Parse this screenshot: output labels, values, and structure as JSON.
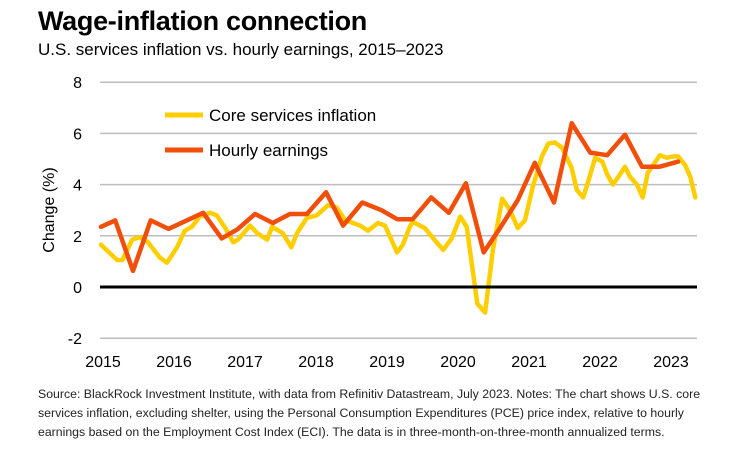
{
  "chart_data": {
    "type": "line",
    "title": "Wage-inflation connection",
    "subtitle": "U.S. services inflation vs. hourly earnings, 2015–2023",
    "xlabel": "",
    "ylabel": "Change (%)",
    "xlim": [
      2015,
      2023.5
    ],
    "ylim": [
      -2,
      8
    ],
    "yticks": [
      8,
      6,
      4,
      2,
      0,
      -2
    ],
    "ytick_labels": [
      "8",
      "6",
      "4",
      "2",
      "0",
      "-2"
    ],
    "xticks": [
      2015,
      2016,
      2017,
      2018,
      2019,
      2020,
      2021,
      2022,
      2023
    ],
    "xtick_labels": [
      "2015",
      "2016",
      "2017",
      "2018",
      "2019",
      "2020",
      "2021",
      "2022",
      "2023"
    ],
    "grid": true,
    "legend_position": "top-left",
    "series": [
      {
        "name": "Core services inflation",
        "color": "#FFCE00",
        "points": [
          [
            2015.0,
            1.65
          ],
          [
            2015.23,
            1.05
          ],
          [
            2015.3,
            1.05
          ],
          [
            2015.44,
            1.85
          ],
          [
            2015.55,
            1.95
          ],
          [
            2015.66,
            1.75
          ],
          [
            2015.83,
            1.15
          ],
          [
            2015.93,
            0.95
          ],
          [
            2016.07,
            1.55
          ],
          [
            2016.18,
            2.2
          ],
          [
            2016.28,
            2.35
          ],
          [
            2016.39,
            2.75
          ],
          [
            2016.54,
            2.9
          ],
          [
            2016.63,
            2.8
          ],
          [
            2016.75,
            2.3
          ],
          [
            2016.86,
            1.75
          ],
          [
            2016.93,
            1.85
          ],
          [
            2017.1,
            2.4
          ],
          [
            2017.2,
            2.1
          ],
          [
            2017.34,
            1.85
          ],
          [
            2017.41,
            2.35
          ],
          [
            2017.56,
            2.1
          ],
          [
            2017.68,
            1.55
          ],
          [
            2017.76,
            2.1
          ],
          [
            2017.9,
            2.7
          ],
          [
            2018.04,
            2.8
          ],
          [
            2018.2,
            3.2
          ],
          [
            2018.32,
            3.1
          ],
          [
            2018.44,
            2.6
          ],
          [
            2018.55,
            2.5
          ],
          [
            2018.65,
            2.4
          ],
          [
            2018.76,
            2.2
          ],
          [
            2018.9,
            2.5
          ],
          [
            2019.0,
            2.4
          ],
          [
            2019.17,
            1.35
          ],
          [
            2019.25,
            1.65
          ],
          [
            2019.35,
            2.35
          ],
          [
            2019.39,
            2.55
          ],
          [
            2019.56,
            2.3
          ],
          [
            2019.68,
            1.9
          ],
          [
            2019.82,
            1.45
          ],
          [
            2019.94,
            1.9
          ],
          [
            2020.06,
            2.75
          ],
          [
            2020.15,
            2.35
          ],
          [
            2020.3,
            -0.65
          ],
          [
            2020.41,
            -1.0
          ],
          [
            2020.52,
            1.45
          ],
          [
            2020.65,
            3.45
          ],
          [
            2020.76,
            3.0
          ],
          [
            2020.87,
            2.3
          ],
          [
            2020.97,
            2.6
          ],
          [
            2021.08,
            3.9
          ],
          [
            2021.21,
            5.1
          ],
          [
            2021.3,
            5.6
          ],
          [
            2021.39,
            5.65
          ],
          [
            2021.49,
            5.45
          ],
          [
            2021.63,
            4.65
          ],
          [
            2021.7,
            3.8
          ],
          [
            2021.79,
            3.5
          ],
          [
            2021.86,
            4.1
          ],
          [
            2021.96,
            5.05
          ],
          [
            2022.06,
            4.9
          ],
          [
            2022.13,
            4.4
          ],
          [
            2022.21,
            4.0
          ],
          [
            2022.31,
            4.4
          ],
          [
            2022.38,
            4.7
          ],
          [
            2022.45,
            4.3
          ],
          [
            2022.55,
            4.0
          ],
          [
            2022.63,
            3.5
          ],
          [
            2022.7,
            4.45
          ],
          [
            2022.87,
            5.15
          ],
          [
            2022.97,
            5.05
          ],
          [
            2023.06,
            5.1
          ],
          [
            2023.13,
            5.1
          ],
          [
            2023.23,
            4.75
          ],
          [
            2023.3,
            4.3
          ],
          [
            2023.37,
            3.5
          ]
        ]
      },
      {
        "name": "Hourly earnings",
        "color": "#F04E0A",
        "points": [
          [
            2015.0,
            2.35
          ],
          [
            2015.2,
            2.6
          ],
          [
            2015.45,
            0.63
          ],
          [
            2015.7,
            2.6
          ],
          [
            2015.95,
            2.27
          ],
          [
            2016.44,
            2.9
          ],
          [
            2016.7,
            1.9
          ],
          [
            2016.92,
            2.25
          ],
          [
            2017.17,
            2.85
          ],
          [
            2017.42,
            2.5
          ],
          [
            2017.66,
            2.85
          ],
          [
            2017.9,
            2.85
          ],
          [
            2018.17,
            3.7
          ],
          [
            2018.41,
            2.4
          ],
          [
            2018.68,
            3.3
          ],
          [
            2018.95,
            3.0
          ],
          [
            2019.17,
            2.65
          ],
          [
            2019.39,
            2.65
          ],
          [
            2019.65,
            3.5
          ],
          [
            2019.9,
            2.9
          ],
          [
            2020.14,
            4.05
          ],
          [
            2020.39,
            1.35
          ],
          [
            2020.62,
            2.3
          ],
          [
            2020.87,
            3.4
          ],
          [
            2021.11,
            4.85
          ],
          [
            2021.38,
            3.3
          ],
          [
            2021.63,
            6.4
          ],
          [
            2021.89,
            5.25
          ],
          [
            2022.13,
            5.15
          ],
          [
            2022.38,
            5.95
          ],
          [
            2022.62,
            4.7
          ],
          [
            2022.87,
            4.7
          ],
          [
            2023.13,
            4.9
          ]
        ]
      }
    ]
  },
  "source_note": "Source: BlackRock Investment Institute, with data from Refinitiv Datastream, July 2023. Notes: The chart shows U.S. core services inflation, excluding shelter, using the Personal Consumption Expenditures (PCE) price index, relative to hourly earnings based on the Employment Cost Index (ECI). The data is in three-month-on-three-month annualized terms."
}
